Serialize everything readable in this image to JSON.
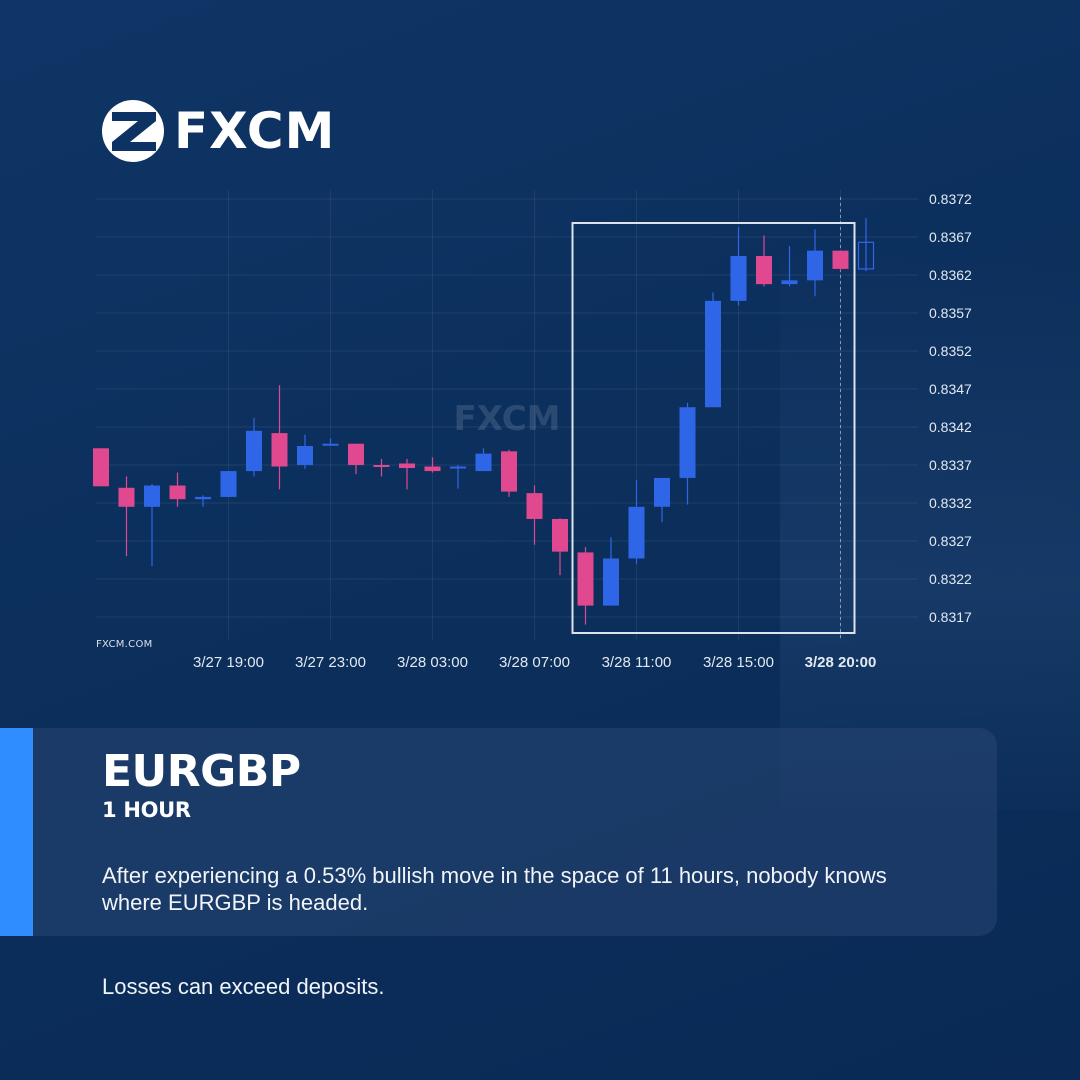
{
  "brand": {
    "name": "FXCM",
    "watermark": "FXCM",
    "site": "FXCM.COM"
  },
  "instrument": {
    "symbol": "EURGBP",
    "timeframe": "1 HOUR",
    "description": "After experiencing a 0.53% bullish move in the space of  11 hours, nobody knows where EURGBP is headed."
  },
  "disclaimer": "Losses can exceed deposits.",
  "colors": {
    "background": "#0c2f5c",
    "bullish": "#2f66e8",
    "bearish": "#e0488f",
    "accent": "#2f8dff",
    "highlight_box": "#dce3ec"
  },
  "chart_data": {
    "type": "candlestick",
    "y_ticks": [
      "0.8372",
      "0.8367",
      "0.8362",
      "0.8357",
      "0.8352",
      "0.8347",
      "0.8342",
      "0.8337",
      "0.8332",
      "0.8327",
      "0.8322",
      "0.8317"
    ],
    "x_ticks": [
      {
        "label": "3/27 19:00",
        "index": 5,
        "bold": false
      },
      {
        "label": "3/27 23:00",
        "index": 9,
        "bold": false
      },
      {
        "label": "3/28 03:00",
        "index": 13,
        "bold": false
      },
      {
        "label": "3/28 07:00",
        "index": 17,
        "bold": false
      },
      {
        "label": "3/28 11:00",
        "index": 21,
        "bold": false
      },
      {
        "label": "3/28 15:00",
        "index": 25,
        "bold": false
      },
      {
        "label": "3/28 20:00",
        "index": 29,
        "bold": true
      }
    ],
    "ylim": [
      0.8315,
      0.8374
    ],
    "grid": true,
    "candles": [
      {
        "o": 0.83392,
        "h": 0.83392,
        "l": 0.83342,
        "c": 0.83342
      },
      {
        "o": 0.8334,
        "h": 0.83355,
        "l": 0.8325,
        "c": 0.83315
      },
      {
        "o": 0.83315,
        "h": 0.83345,
        "l": 0.83237,
        "c": 0.83343
      },
      {
        "o": 0.83343,
        "h": 0.8336,
        "l": 0.83315,
        "c": 0.83325
      },
      {
        "o": 0.83325,
        "h": 0.8333,
        "l": 0.83315,
        "c": 0.83328
      },
      {
        "o": 0.83328,
        "h": 0.83362,
        "l": 0.83328,
        "c": 0.83362
      },
      {
        "o": 0.83362,
        "h": 0.83432,
        "l": 0.83355,
        "c": 0.83415
      },
      {
        "o": 0.83412,
        "h": 0.83475,
        "l": 0.83338,
        "c": 0.83368
      },
      {
        "o": 0.8337,
        "h": 0.8341,
        "l": 0.83365,
        "c": 0.83395
      },
      {
        "o": 0.83398,
        "h": 0.83405,
        "l": 0.83395,
        "c": 0.83398
      },
      {
        "o": 0.83398,
        "h": 0.83398,
        "l": 0.83358,
        "c": 0.8337
      },
      {
        "o": 0.8337,
        "h": 0.83378,
        "l": 0.83355,
        "c": 0.83368
      },
      {
        "o": 0.83372,
        "h": 0.83378,
        "l": 0.83338,
        "c": 0.83366
      },
      {
        "o": 0.83368,
        "h": 0.8338,
        "l": 0.8336,
        "c": 0.83362
      },
      {
        "o": 0.83366,
        "h": 0.8337,
        "l": 0.83339,
        "c": 0.83368
      },
      {
        "o": 0.83362,
        "h": 0.83392,
        "l": 0.83362,
        "c": 0.83385
      },
      {
        "o": 0.83388,
        "h": 0.8339,
        "l": 0.83328,
        "c": 0.83335
      },
      {
        "o": 0.83333,
        "h": 0.83343,
        "l": 0.83265,
        "c": 0.83299
      },
      {
        "o": 0.83299,
        "h": 0.833,
        "l": 0.83225,
        "c": 0.83256
      },
      {
        "o": 0.83255,
        "h": 0.83262,
        "l": 0.8316,
        "c": 0.83185
      },
      {
        "o": 0.83185,
        "h": 0.83275,
        "l": 0.83185,
        "c": 0.83247
      },
      {
        "o": 0.83247,
        "h": 0.8335,
        "l": 0.8324,
        "c": 0.83315
      },
      {
        "o": 0.83315,
        "h": 0.83353,
        "l": 0.83295,
        "c": 0.83353
      },
      {
        "o": 0.83353,
        "h": 0.83452,
        "l": 0.83318,
        "c": 0.83446
      },
      {
        "o": 0.83446,
        "h": 0.83597,
        "l": 0.83446,
        "c": 0.83586
      },
      {
        "o": 0.83586,
        "h": 0.83683,
        "l": 0.8358,
        "c": 0.83645
      },
      {
        "o": 0.83645,
        "h": 0.83672,
        "l": 0.83605,
        "c": 0.83608
      },
      {
        "o": 0.83608,
        "h": 0.83658,
        "l": 0.83605,
        "c": 0.83613
      },
      {
        "o": 0.83613,
        "h": 0.8368,
        "l": 0.83592,
        "c": 0.83652
      },
      {
        "o": 0.83652,
        "h": 0.83652,
        "l": 0.83625,
        "c": 0.83628
      },
      {
        "o": 0.83628,
        "h": 0.83695,
        "l": 0.83625,
        "c": 0.83663,
        "forming": true
      }
    ],
    "highlight": {
      "from_index": 19,
      "to_index": 29
    },
    "current_marker_index": 29
  }
}
